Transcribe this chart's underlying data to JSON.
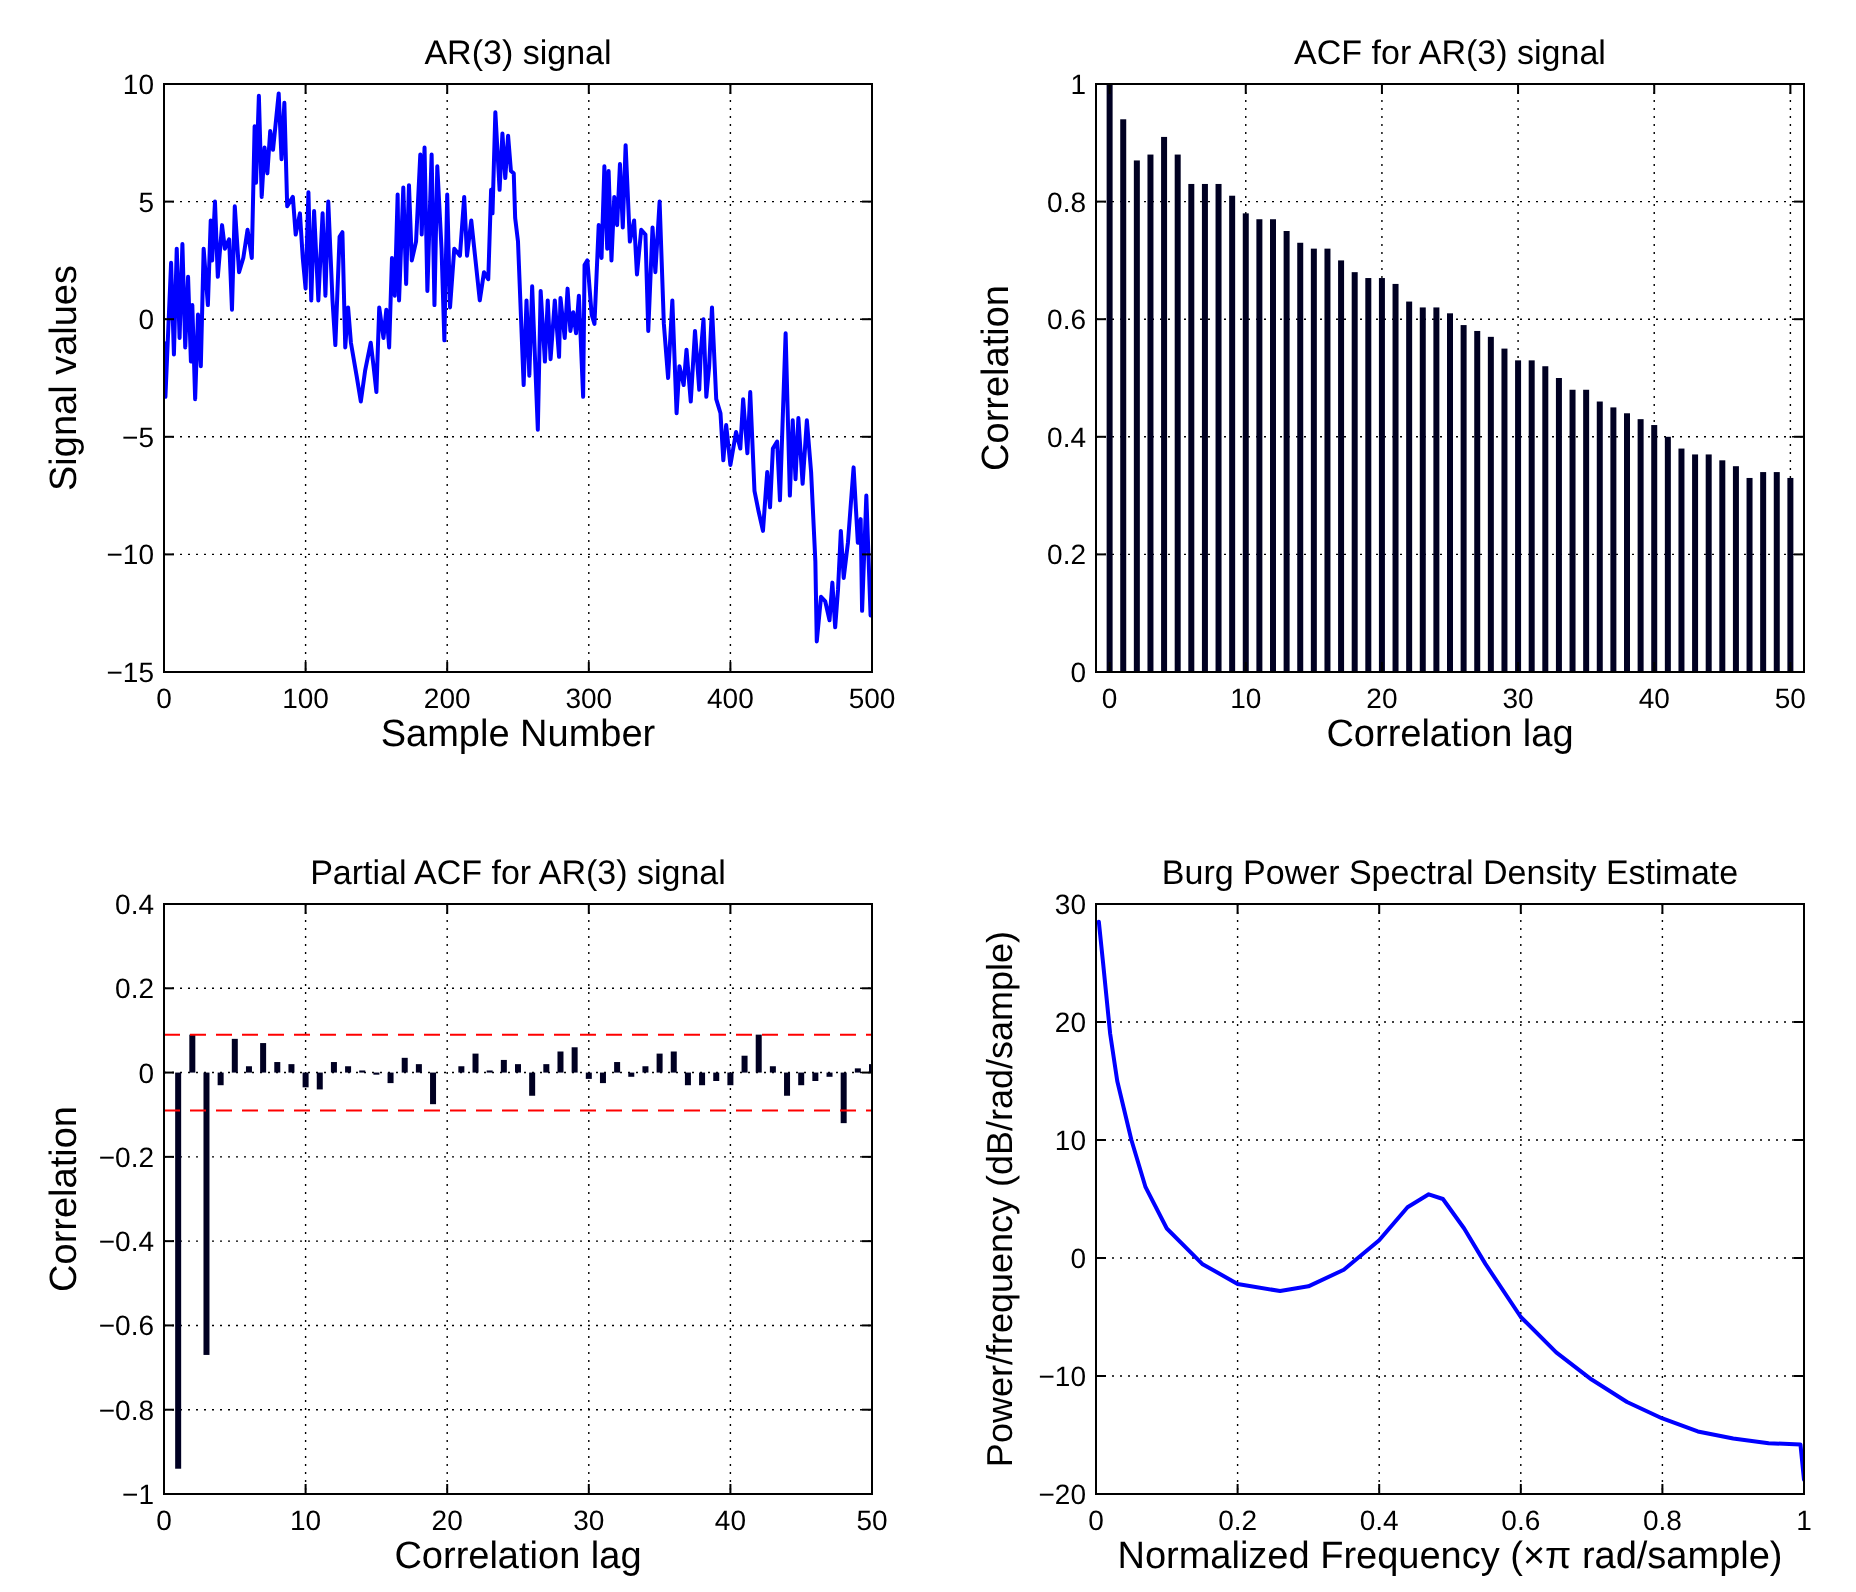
{
  "chart_data": [
    {
      "type": "line",
      "title": "AR(3) signal",
      "xlabel": "Sample Number",
      "ylabel": "Signal values",
      "xlim": [
        0,
        500
      ],
      "ylim": [
        -15,
        10
      ],
      "xticks": [
        0,
        100,
        200,
        300,
        400,
        500
      ],
      "yticks": [
        -15,
        -10,
        -5,
        0,
        5,
        10
      ],
      "grid": true,
      "series": [
        {
          "color": "#0000ff",
          "x": [
            0,
            1,
            5,
            7,
            9,
            11,
            13,
            15,
            17,
            19,
            20,
            22,
            24,
            26,
            28,
            31,
            33,
            34,
            36,
            38,
            41,
            43,
            46,
            48,
            50,
            53,
            56,
            59,
            62,
            64,
            65,
            67,
            69,
            71,
            73,
            75,
            77,
            81,
            83,
            85,
            87,
            91,
            93,
            96,
            98,
            100,
            102,
            104,
            106,
            109,
            112,
            114,
            116,
            119,
            121,
            124,
            126,
            128,
            130,
            132,
            136,
            139,
            142,
            146,
            148,
            150,
            152,
            155,
            157,
            159,
            161,
            163,
            165,
            166,
            169,
            171,
            173,
            175,
            178,
            181,
            182,
            184,
            186,
            189,
            191,
            193,
            196,
            198,
            200,
            202,
            205,
            209,
            212,
            214,
            217,
            220,
            223,
            226,
            229,
            231,
            232,
            234,
            237,
            239,
            241,
            243,
            245,
            247,
            248,
            250,
            254,
            256,
            258,
            260,
            264,
            266,
            269,
            271,
            273,
            276,
            279,
            280,
            283,
            285,
            287,
            289,
            291,
            293,
            296,
            297,
            299,
            302,
            304,
            307,
            309,
            311,
            313,
            314,
            316,
            318,
            320,
            322,
            324,
            326,
            329,
            330,
            332,
            334,
            337,
            340,
            342,
            345,
            347,
            350,
            353,
            356,
            359,
            362,
            364,
            367,
            369,
            372,
            375,
            378,
            379,
            381,
            383,
            385,
            387,
            390,
            393,
            395,
            397,
            400,
            404,
            407,
            409,
            412,
            414,
            417,
            420,
            423,
            426,
            428,
            430,
            433,
            435,
            439,
            442,
            444,
            446,
            448,
            451,
            454,
            457,
            460,
            461,
            464,
            467,
            470,
            472,
            474,
            476,
            478,
            480,
            483,
            487,
            490,
            492,
            493,
            496,
            499
          ],
          "values": [
            -1,
            -3.3,
            2.4,
            -1.5,
            3,
            -0.8,
            3.2,
            -1.2,
            1.8,
            -1.8,
            0.6,
            -3.4,
            0.2,
            -2,
            3,
            0.6,
            4.2,
            2.5,
            5,
            1.8,
            4,
            3,
            3.4,
            0.4,
            4.8,
            2,
            2.6,
            3.8,
            2.6,
            8.2,
            5.8,
            9.5,
            5.2,
            7.3,
            6.2,
            8,
            7.2,
            9.6,
            6.8,
            9.2,
            4.8,
            5.2,
            3.6,
            4.5,
            2.6,
            1.3,
            5.4,
            0.8,
            4.6,
            0.8,
            4.5,
            1,
            5,
            0.8,
            -1.1,
            3.5,
            3.7,
            -1.2,
            0.5,
            -1,
            -2.4,
            -3.5,
            -2.2,
            -1,
            -2,
            -3.1,
            0.5,
            -0.8,
            0.4,
            -1.2,
            2.6,
            1,
            5.3,
            0.8,
            5.6,
            1.5,
            5.7,
            2.5,
            3.3,
            7,
            3.6,
            7.3,
            1.2,
            7,
            0.6,
            6.5,
            3,
            -0.9,
            5.3,
            0.5,
            3,
            2.7,
            5.2,
            2.7,
            4.2,
            2.5,
            0.8,
            2,
            1.7,
            5.5,
            4.5,
            8.8,
            5.5,
            7.9,
            6,
            7.8,
            6.3,
            6.2,
            4.3,
            3.3,
            -2.8,
            0.8,
            -2.4,
            1.4,
            -4.7,
            1.2,
            -1.8,
            0.8,
            -1.7,
            0.8,
            -1.6,
            0.9,
            -0.8,
            1.3,
            -0.5,
            0.3,
            -0.6,
            1,
            -3.3,
            2.3,
            2.5,
            0.2,
            -0.2,
            4,
            2.6,
            6.5,
            3,
            6.3,
            2.5,
            5.2,
            4,
            6.6,
            3.9,
            7.4,
            3.3,
            3.6,
            4.2,
            1.9,
            3.8,
            3.6,
            -0.5,
            3.9,
            2,
            5,
            -0.2,
            -2.5,
            0.8,
            -4,
            -2,
            -2.8,
            -1.3,
            -3.5,
            -0.5,
            -3,
            -1.5,
            0,
            -3.3,
            -2,
            0.5,
            -3.4,
            -4,
            -6,
            -4.5,
            -6.2,
            -4.8,
            -5.5,
            -3.4,
            -5.7,
            -3.1,
            -7.3,
            -8.2,
            -9,
            -6.5,
            -8,
            -5.5,
            -5.2,
            -7.7,
            -0.6,
            -7.5,
            -4.3,
            -6.8,
            -4.2,
            -7,
            -4.3,
            -6.5,
            -10.3,
            -13.7,
            -11.8,
            -12,
            -12.8,
            -11.2,
            -13.1,
            -11.5,
            -9,
            -11,
            -9.5,
            -6.3,
            -9.5,
            -8.5,
            -12.4,
            -7.5,
            -12.6
          ]
        }
      ]
    },
    {
      "type": "bar",
      "title": "ACF for AR(3) signal",
      "xlabel": "Correlation lag",
      "ylabel": "Correlation",
      "xlim": [
        -1,
        51
      ],
      "ylim": [
        0,
        1
      ],
      "xticks": [
        0,
        10,
        20,
        30,
        40,
        50
      ],
      "yticks": [
        0,
        0.2,
        0.4,
        0.6,
        0.8,
        1
      ],
      "grid": true,
      "series": [
        {
          "color": "#000022",
          "x": [
            0,
            1,
            2,
            3,
            4,
            5,
            6,
            7,
            8,
            9,
            10,
            11,
            12,
            13,
            14,
            15,
            16,
            17,
            18,
            19,
            20,
            21,
            22,
            23,
            24,
            25,
            26,
            27,
            28,
            29,
            30,
            31,
            32,
            33,
            34,
            35,
            36,
            37,
            38,
            39,
            40,
            41,
            42,
            43,
            44,
            45,
            46,
            47,
            48,
            49,
            50
          ],
          "values": [
            1,
            0.94,
            0.87,
            0.88,
            0.91,
            0.88,
            0.83,
            0.83,
            0.83,
            0.81,
            0.78,
            0.77,
            0.77,
            0.75,
            0.73,
            0.72,
            0.72,
            0.7,
            0.68,
            0.67,
            0.67,
            0.66,
            0.63,
            0.62,
            0.62,
            0.61,
            0.59,
            0.58,
            0.57,
            0.55,
            0.53,
            0.53,
            0.52,
            0.5,
            0.48,
            0.48,
            0.46,
            0.45,
            0.44,
            0.43,
            0.42,
            0.4,
            0.38,
            0.37,
            0.37,
            0.36,
            0.35,
            0.33,
            0.34,
            0.34,
            0.33
          ]
        }
      ]
    },
    {
      "type": "bar",
      "title": "Partial ACF for AR(3) signal",
      "xlabel": "Correlation lag",
      "ylabel": "Correlation",
      "xlim": [
        0,
        50
      ],
      "ylim": [
        -1,
        0.4
      ],
      "xticks": [
        0,
        10,
        20,
        30,
        40,
        50
      ],
      "yticks": [
        -1,
        -0.8,
        -0.6,
        -0.4,
        -0.2,
        0,
        0.2,
        0.4
      ],
      "grid": true,
      "series": [
        {
          "color": "#000022",
          "x": [
            1,
            2,
            3,
            4,
            5,
            6,
            7,
            8,
            9,
            10,
            11,
            12,
            13,
            14,
            15,
            16,
            17,
            18,
            19,
            20,
            21,
            22,
            23,
            24,
            25,
            26,
            27,
            28,
            29,
            30,
            31,
            32,
            33,
            34,
            35,
            36,
            37,
            38,
            39,
            40,
            41,
            42,
            43,
            44,
            45,
            46,
            47,
            48,
            49,
            50
          ],
          "values": [
            -0.94,
            0.09,
            -0.67,
            -0.03,
            0.08,
            0.015,
            0.07,
            0.025,
            0.02,
            -0.035,
            -0.04,
            0.025,
            0.015,
            0.005,
            -0.005,
            -0.025,
            0.035,
            0.02,
            -0.075,
            0,
            0.015,
            0.045,
            0.005,
            0.03,
            0.02,
            -0.055,
            0.02,
            0.05,
            0.06,
            -0.015,
            -0.025,
            0.025,
            -0.01,
            0.015,
            0.045,
            0.05,
            -0.03,
            -0.03,
            -0.02,
            -0.03,
            0.04,
            0.09,
            0.015,
            -0.055,
            -0.03,
            -0.02,
            -0.01,
            -0.12,
            0.01,
            0.02
          ]
        }
      ],
      "ref_lines": [
        {
          "axis": "y",
          "value": 0.09,
          "color": "#ff0000",
          "line_style": "dashed"
        },
        {
          "axis": "y",
          "value": -0.09,
          "color": "#ff0000",
          "line_style": "dashed"
        }
      ]
    },
    {
      "type": "line",
      "title": "Burg Power Spectral Density Estimate",
      "xlabel": "Normalized Frequency  (×π rad/sample)",
      "ylabel": "Power/frequency (dB/rad/sample)",
      "xlim": [
        0,
        1
      ],
      "ylim": [
        -20,
        30
      ],
      "xticks": [
        0,
        0.2,
        0.4,
        0.6,
        0.8,
        1
      ],
      "yticks": [
        -20,
        -10,
        0,
        10,
        20,
        30
      ],
      "grid": true,
      "series": [
        {
          "color": "#0000ff",
          "x": [
            0.004,
            0.01,
            0.02,
            0.03,
            0.05,
            0.07,
            0.1,
            0.15,
            0.2,
            0.26,
            0.3,
            0.35,
            0.4,
            0.44,
            0.47,
            0.49,
            0.52,
            0.55,
            0.6,
            0.65,
            0.7,
            0.75,
            0.8,
            0.85,
            0.9,
            0.95,
            0.995,
            1
          ],
          "values": [
            28.5,
            25,
            19,
            15,
            10,
            6,
            2.5,
            -0.5,
            -2.2,
            -2.8,
            -2.4,
            -1,
            1.5,
            4.3,
            5.4,
            5,
            2.5,
            -0.5,
            -5,
            -8,
            -10.3,
            -12.2,
            -13.6,
            -14.7,
            -15.3,
            -15.7,
            -15.8,
            -18.8
          ]
        }
      ]
    }
  ]
}
